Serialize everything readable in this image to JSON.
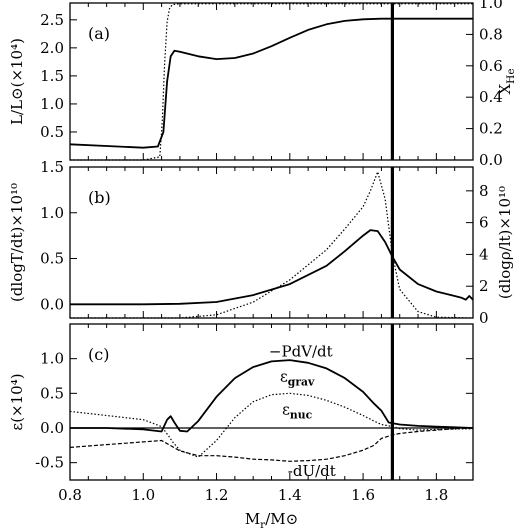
{
  "chart_data": [
    {
      "id": "a",
      "type": "line",
      "panel_label": "(a)",
      "ylabel": "L/L⊙(×10⁴)",
      "ylabel_right": "X_He",
      "ylim": [
        0.0,
        2.8
      ],
      "ylim_right": [
        0.0,
        1.0
      ],
      "yticks": [
        0.5,
        1.0,
        1.5,
        2.0,
        2.5
      ],
      "yticks_right": [
        0.0,
        0.2,
        0.4,
        0.6,
        0.8,
        1.0
      ],
      "series": [
        {
          "axis": "left",
          "style": "solid",
          "x": [
            0.8,
            0.9,
            1.0,
            1.04,
            1.055,
            1.065,
            1.075,
            1.085,
            1.1,
            1.15,
            1.2,
            1.25,
            1.3,
            1.35,
            1.4,
            1.45,
            1.5,
            1.55,
            1.6,
            1.65,
            1.7,
            1.75,
            1.8,
            1.85,
            1.9
          ],
          "y": [
            0.28,
            0.25,
            0.22,
            0.24,
            0.5,
            1.4,
            1.85,
            1.95,
            1.93,
            1.85,
            1.8,
            1.82,
            1.9,
            2.03,
            2.18,
            2.32,
            2.42,
            2.48,
            2.51,
            2.52,
            2.52,
            2.52,
            2.52,
            2.52,
            2.52
          ]
        },
        {
          "axis": "right",
          "style": "dotted",
          "x": [
            0.8,
            1.0,
            1.045,
            1.052,
            1.058,
            1.065,
            1.072,
            1.08,
            1.1,
            1.2,
            1.5,
            1.9
          ],
          "y": [
            0.0,
            0.0,
            0.02,
            0.25,
            0.6,
            0.88,
            0.97,
            0.99,
            0.995,
            0.995,
            0.995,
            0.995
          ]
        }
      ]
    },
    {
      "id": "b",
      "type": "line",
      "panel_label": "(b)",
      "ylabel": "(dlogT/dt)×10¹⁰",
      "ylabel_right": "(dlogρ/lt)×10¹⁰",
      "ylim": [
        -0.15,
        1.5
      ],
      "ylim_right": [
        0,
        9.5
      ],
      "yticks": [
        0.0,
        0.5,
        1.0,
        1.5
      ],
      "yticks_right": [
        0,
        2,
        4,
        6,
        8
      ],
      "series": [
        {
          "axis": "left",
          "style": "solid",
          "x": [
            0.8,
            1.0,
            1.1,
            1.2,
            1.3,
            1.4,
            1.5,
            1.55,
            1.6,
            1.62,
            1.64,
            1.66,
            1.68,
            1.7,
            1.75,
            1.8,
            1.85,
            1.87,
            1.88,
            1.89,
            1.9
          ],
          "y": [
            0.0,
            0.0,
            0.005,
            0.025,
            0.1,
            0.22,
            0.42,
            0.58,
            0.75,
            0.81,
            0.8,
            0.68,
            0.52,
            0.38,
            0.22,
            0.14,
            0.09,
            0.07,
            0.05,
            0.09,
            0.05
          ]
        },
        {
          "axis": "right",
          "style": "dotted",
          "x": [
            0.8,
            1.1,
            1.2,
            1.3,
            1.4,
            1.5,
            1.55,
            1.6,
            1.62,
            1.64,
            1.66,
            1.68,
            1.7,
            1.75,
            1.8,
            1.9
          ],
          "y": [
            0.0,
            0.0,
            0.2,
            1.0,
            2.4,
            4.3,
            5.6,
            7.0,
            8.0,
            9.2,
            7.5,
            4.0,
            1.8,
            0.4,
            0.05,
            0.0
          ]
        }
      ]
    },
    {
      "id": "c",
      "type": "line",
      "panel_label": "(c)",
      "ylabel": "ε(×10⁴)",
      "xlabel": "M_r/M⊙",
      "ylim": [
        -0.75,
        1.5
      ],
      "xlim": [
        0.8,
        1.9
      ],
      "yticks": [
        -0.5,
        0.0,
        0.5,
        1.0
      ],
      "xticks": [
        0.8,
        1.0,
        1.2,
        1.4,
        1.6,
        1.8
      ],
      "annotations": [
        "−PdV/dt",
        "εgrav",
        "εnuc",
        "-dU/dt"
      ],
      "series": [
        {
          "axis": "left",
          "style": "solid",
          "name": "−PdV/dt",
          "x": [
            0.8,
            0.9,
            1.0,
            1.05,
            1.065,
            1.075,
            1.085,
            1.1,
            1.12,
            1.15,
            1.2,
            1.25,
            1.3,
            1.35,
            1.4,
            1.45,
            1.5,
            1.55,
            1.6,
            1.63,
            1.65,
            1.67,
            1.7,
            1.75,
            1.8,
            1.85,
            1.9
          ],
          "y": [
            0.0,
            0.0,
            -0.02,
            -0.05,
            0.12,
            0.17,
            0.08,
            -0.04,
            -0.05,
            0.1,
            0.45,
            0.72,
            0.88,
            0.96,
            0.98,
            0.94,
            0.86,
            0.72,
            0.52,
            0.35,
            0.25,
            0.08,
            0.05,
            0.03,
            0.02,
            0.01,
            0.0
          ]
        },
        {
          "axis": "left",
          "style": "dotted",
          "name": "εgrav",
          "x": [
            0.8,
            0.9,
            1.0,
            1.05,
            1.07,
            1.08,
            1.1,
            1.15,
            1.2,
            1.25,
            1.3,
            1.35,
            1.4,
            1.45,
            1.5,
            1.55,
            1.6,
            1.63,
            1.65,
            1.68,
            1.7,
            1.75,
            1.8,
            1.9
          ],
          "y": [
            0.24,
            0.18,
            0.12,
            0.02,
            -0.12,
            -0.2,
            -0.32,
            -0.42,
            -0.18,
            0.15,
            0.38,
            0.48,
            0.5,
            0.47,
            0.4,
            0.3,
            0.18,
            0.1,
            0.05,
            0.02,
            -0.01,
            -0.03,
            -0.02,
            -0.01
          ]
        },
        {
          "axis": "left",
          "style": "dashed",
          "name": "-dU/dt",
          "x": [
            0.8,
            0.9,
            1.0,
            1.05,
            1.1,
            1.15,
            1.2,
            1.25,
            1.3,
            1.35,
            1.4,
            1.45,
            1.5,
            1.55,
            1.6,
            1.63,
            1.65,
            1.68,
            1.7,
            1.75,
            1.8,
            1.85,
            1.9
          ],
          "y": [
            -0.28,
            -0.24,
            -0.2,
            -0.18,
            -0.33,
            -0.4,
            -0.4,
            -0.42,
            -0.45,
            -0.46,
            -0.48,
            -0.47,
            -0.45,
            -0.4,
            -0.32,
            -0.25,
            -0.15,
            -0.1,
            -0.08,
            -0.05,
            -0.03,
            -0.01,
            0.0
          ]
        }
      ]
    }
  ],
  "shared_x": {
    "xlim": [
      0.8,
      1.9
    ],
    "xticks": [
      0.8,
      1.0,
      1.2,
      1.4,
      1.6,
      1.8
    ],
    "xlabel": "M_r/M⊙",
    "vertical_marker": 1.68
  }
}
